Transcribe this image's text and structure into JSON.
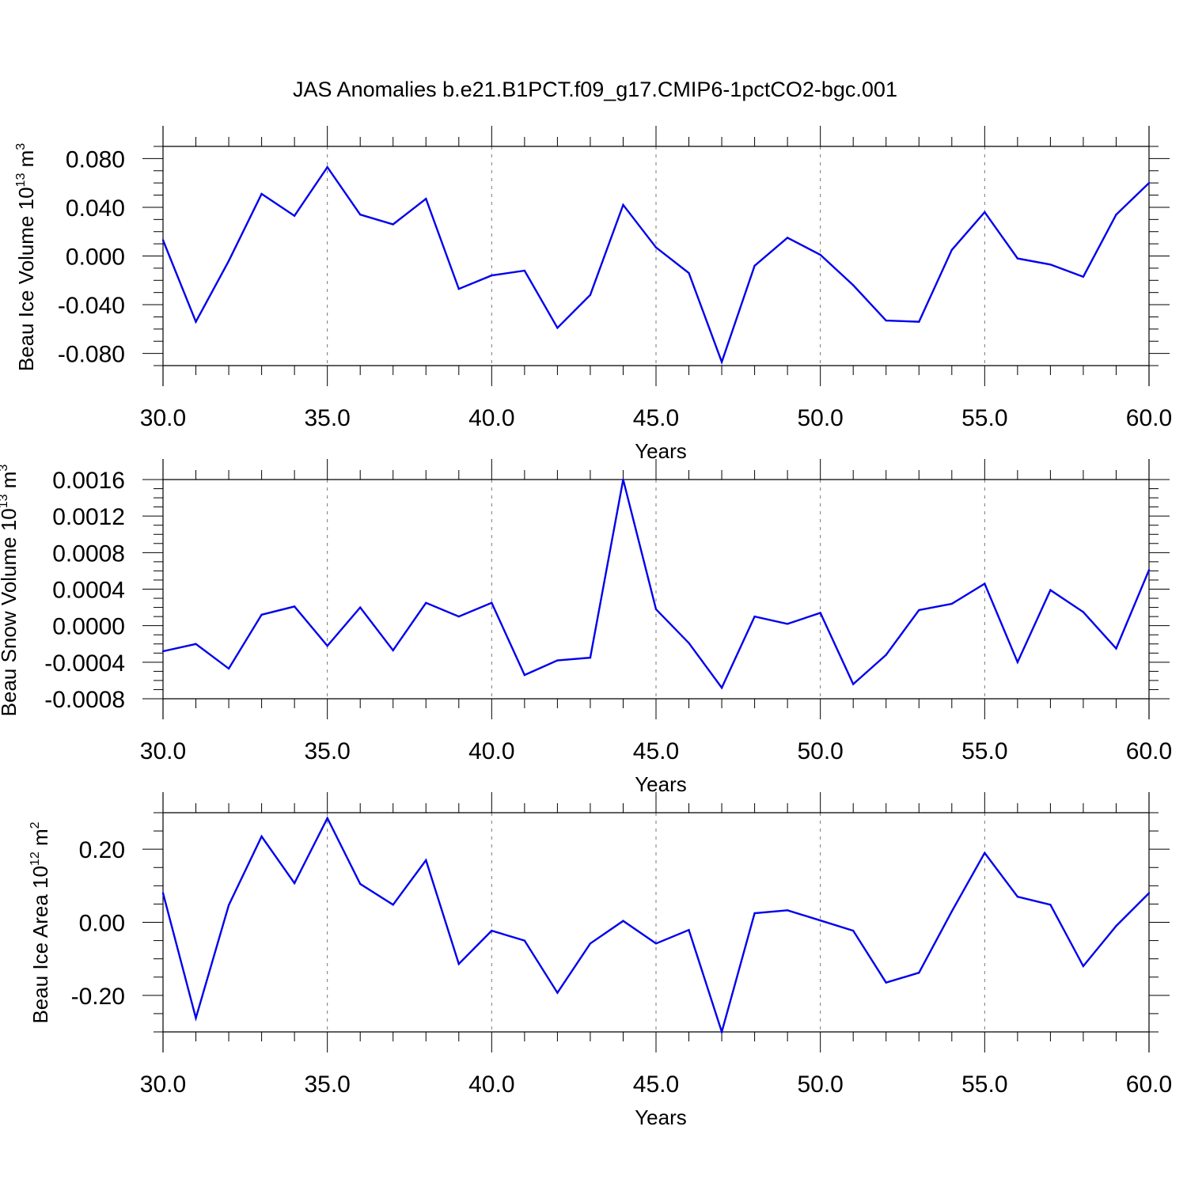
{
  "title": "JAS Anomalies b.e21.B1PCT.f09_g17.CMIP6-1pctCO2-bgc.001",
  "chart_data": [
    {
      "type": "line",
      "ylabel_main": "Beau Ice Volume 10",
      "ylabel_sup": "13",
      "ylabel_unit": " m",
      "ylabel_unit_sup": "3",
      "xlabel": "Years",
      "xlim": [
        30,
        60
      ],
      "ylim": [
        -0.09,
        0.09
      ],
      "xticks": [
        30,
        35,
        40,
        45,
        50,
        55,
        60
      ],
      "xtick_labels": [
        "30.0",
        "35.0",
        "40.0",
        "45.0",
        "50.0",
        "55.0",
        "60.0"
      ],
      "yticks": [
        -0.08,
        -0.04,
        0.0,
        0.04,
        0.08
      ],
      "ytick_labels": [
        "-0.080",
        "-0.040",
        "0.000",
        "0.040",
        "0.080"
      ],
      "line_color": "#0000ee",
      "grid": "vertical dashed at major x ticks",
      "x": [
        30,
        31,
        32,
        33,
        34,
        35,
        36,
        37,
        38,
        39,
        40,
        41,
        42,
        43,
        44,
        45,
        46,
        47,
        48,
        49,
        50,
        51,
        52,
        53,
        54,
        55,
        56,
        57,
        58,
        59,
        60
      ],
      "values": [
        0.013,
        -0.054,
        -0.004,
        0.051,
        0.033,
        0.073,
        0.034,
        0.026,
        0.047,
        -0.027,
        -0.016,
        -0.012,
        -0.059,
        -0.032,
        0.042,
        0.007,
        -0.014,
        -0.087,
        -0.008,
        0.015,
        0.001,
        -0.024,
        -0.053,
        -0.054,
        0.005,
        0.036,
        -0.002,
        -0.007,
        -0.017,
        0.034,
        0.06
      ]
    },
    {
      "type": "line",
      "ylabel_main": "Beau Snow Volume 10",
      "ylabel_sup": "13",
      "ylabel_unit": " m",
      "ylabel_unit_sup": "3",
      "xlabel": "Years",
      "xlim": [
        30,
        60
      ],
      "ylim": [
        -0.0008,
        0.0016
      ],
      "xticks": [
        30,
        35,
        40,
        45,
        50,
        55,
        60
      ],
      "xtick_labels": [
        "30.0",
        "35.0",
        "40.0",
        "45.0",
        "50.0",
        "55.0",
        "60.0"
      ],
      "yticks": [
        -0.0008,
        -0.0004,
        0.0,
        0.0004,
        0.0008,
        0.0012,
        0.0016
      ],
      "ytick_labels": [
        "-0.0008",
        "-0.0004",
        "0.0000",
        "0.0004",
        "0.0008",
        "0.0012",
        "0.0016"
      ],
      "line_color": "#0000ee",
      "grid": "vertical dashed at major x ticks",
      "x": [
        30,
        31,
        32,
        33,
        34,
        35,
        36,
        37,
        38,
        39,
        40,
        41,
        42,
        43,
        44,
        45,
        46,
        47,
        48,
        49,
        50,
        51,
        52,
        53,
        54,
        55,
        56,
        57,
        58,
        59,
        60
      ],
      "values": [
        -0.00028,
        -0.0002,
        -0.00047,
        0.00012,
        0.00021,
        -0.00022,
        0.0002,
        -0.00027,
        0.00025,
        0.0001,
        0.00025,
        -0.00054,
        -0.00038,
        -0.00035,
        0.0016,
        0.00018,
        -0.00019,
        -0.00068,
        0.0001,
        2e-05,
        0.00014,
        -0.00064,
        -0.00032,
        0.00017,
        0.00024,
        0.00046,
        -0.0004,
        0.00039,
        0.00015,
        -0.00025,
        0.00061
      ]
    },
    {
      "type": "line",
      "ylabel_main": "Beau Ice Area 10",
      "ylabel_sup": "12",
      "ylabel_unit": " m",
      "ylabel_unit_sup": "2",
      "xlabel": "Years",
      "xlim": [
        30,
        60
      ],
      "ylim": [
        -0.3,
        0.3
      ],
      "xticks": [
        30,
        35,
        40,
        45,
        50,
        55,
        60
      ],
      "xtick_labels": [
        "30.0",
        "35.0",
        "40.0",
        "45.0",
        "50.0",
        "55.0",
        "60.0"
      ],
      "yticks": [
        -0.2,
        0.0,
        0.2
      ],
      "ytick_labels": [
        "-0.20",
        "0.00",
        "0.20"
      ],
      "line_color": "#0000ee",
      "grid": "vertical dashed at major x ticks",
      "x": [
        30,
        31,
        32,
        33,
        34,
        35,
        36,
        37,
        38,
        39,
        40,
        41,
        42,
        43,
        44,
        45,
        46,
        47,
        48,
        49,
        50,
        51,
        52,
        53,
        54,
        55,
        56,
        57,
        58,
        59,
        60
      ],
      "values": [
        0.08,
        -0.262,
        0.047,
        0.235,
        0.107,
        0.285,
        0.105,
        0.048,
        0.17,
        -0.114,
        -0.023,
        -0.05,
        -0.193,
        -0.058,
        0.004,
        -0.058,
        -0.021,
        -0.3,
        0.025,
        0.033,
        0.005,
        -0.023,
        -0.165,
        -0.138,
        0.03,
        0.19,
        0.07,
        0.048,
        -0.12,
        -0.01,
        0.08
      ]
    }
  ]
}
